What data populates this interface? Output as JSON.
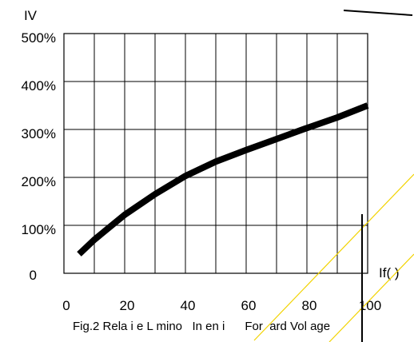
{
  "chart_data": {
    "type": "line",
    "ylabel": "IV",
    "xlabel": "If(  )",
    "caption": "Fig.2 Rela i e L mino   In en i      For  ard Vol age",
    "xlim": [
      0,
      100
    ],
    "ylim": [
      0,
      500
    ],
    "x_ticks": [
      "0",
      "20",
      "40",
      "60",
      "80",
      "100"
    ],
    "y_ticks": [
      "0",
      "100%",
      "200%",
      "300%",
      "400%",
      "500%"
    ],
    "grid": true,
    "series": [
      {
        "color": "#000000",
        "x": [
          5,
          10,
          20,
          30,
          40,
          50,
          60,
          70,
          80,
          90,
          100
        ],
        "y": [
          40,
          70,
          122,
          165,
          203,
          233,
          257,
          280,
          303,
          325,
          350
        ]
      }
    ]
  }
}
